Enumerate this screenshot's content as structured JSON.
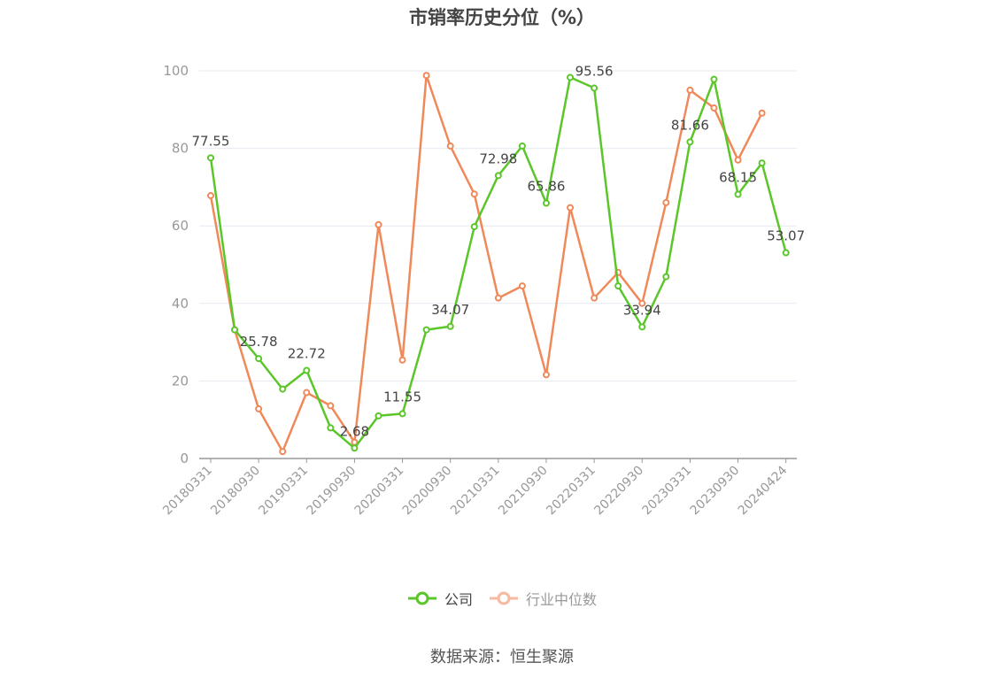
{
  "chart_data": {
    "type": "line",
    "title": "市销率历史分位（%）",
    "ylim": [
      0,
      100
    ],
    "yticks": [
      0,
      20,
      40,
      60,
      80,
      100
    ],
    "grid": true,
    "legend_position": "bottom-center",
    "x": [
      "20180331",
      "20180630",
      "20180930",
      "20181231",
      "20190331",
      "20190630",
      "20190930",
      "20191231",
      "20200331",
      "20200630",
      "20200930",
      "20201231",
      "20210331",
      "20210630",
      "20210930",
      "20211231",
      "20220331",
      "20220630",
      "20220930",
      "20221231",
      "20230331",
      "20230630",
      "20230930",
      "20231231",
      "20240424"
    ],
    "xtick_labels": [
      "20180331",
      "20180930",
      "20190331",
      "20190930",
      "20200331",
      "20200930",
      "20210331",
      "20210930",
      "20220331",
      "20220930",
      "20230331",
      "20230930",
      "20240424"
    ],
    "series": [
      {
        "name": "公司",
        "color": "#5bc62a",
        "values": [
          77.55,
          33.2,
          25.78,
          17.9,
          22.72,
          7.9,
          2.68,
          11.0,
          11.55,
          33.2,
          34.07,
          59.8,
          72.98,
          80.6,
          65.86,
          98.3,
          95.56,
          44.5,
          33.94,
          46.9,
          81.66,
          97.8,
          68.15,
          76.2,
          53.07
        ],
        "labels": {
          "0": "77.55",
          "2": "25.78",
          "4": "22.72",
          "6": "2.68",
          "8": "11.55",
          "10": "34.07",
          "12": "72.98",
          "14": "65.86",
          "16": "95.56",
          "18": "33.94",
          "20": "81.66",
          "22": "68.15",
          "24": "53.07"
        }
      },
      {
        "name": "行业中位数",
        "color": "#f0895a",
        "values": [
          67.8,
          33.2,
          12.8,
          1.8,
          17.0,
          13.6,
          4.2,
          60.3,
          25.4,
          98.8,
          80.6,
          68.2,
          41.4,
          44.5,
          21.6,
          64.7,
          41.4,
          48.0,
          40.0,
          66.0,
          95.0,
          90.4,
          77.0,
          89.1,
          null
        ]
      }
    ]
  },
  "legend": {
    "company": "公司",
    "industry": "行业中位数"
  },
  "footer": {
    "source": "数据来源：恒生聚源"
  },
  "colors": {
    "company": "#5bc62a",
    "industry": "#f0895a",
    "industry_legend": "#f7b9a0",
    "grid": "#e6e9f0",
    "axis": "#999999"
  }
}
